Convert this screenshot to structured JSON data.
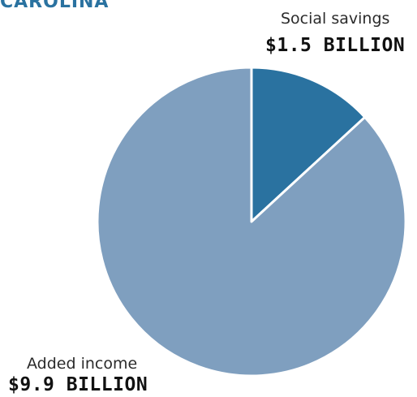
{
  "title": "CAROLINA",
  "chart_data": {
    "type": "pie",
    "title": "CAROLINA",
    "slices": [
      {
        "label": "Social savings",
        "value_label": "$1.5 BILLION",
        "value": 1.5,
        "color": "#2a72a0"
      },
      {
        "label": "Added income",
        "value_label": "$9.9 BILLION",
        "value": 9.9,
        "color": "#7f9fbf"
      }
    ],
    "unit": "billion dollars"
  }
}
